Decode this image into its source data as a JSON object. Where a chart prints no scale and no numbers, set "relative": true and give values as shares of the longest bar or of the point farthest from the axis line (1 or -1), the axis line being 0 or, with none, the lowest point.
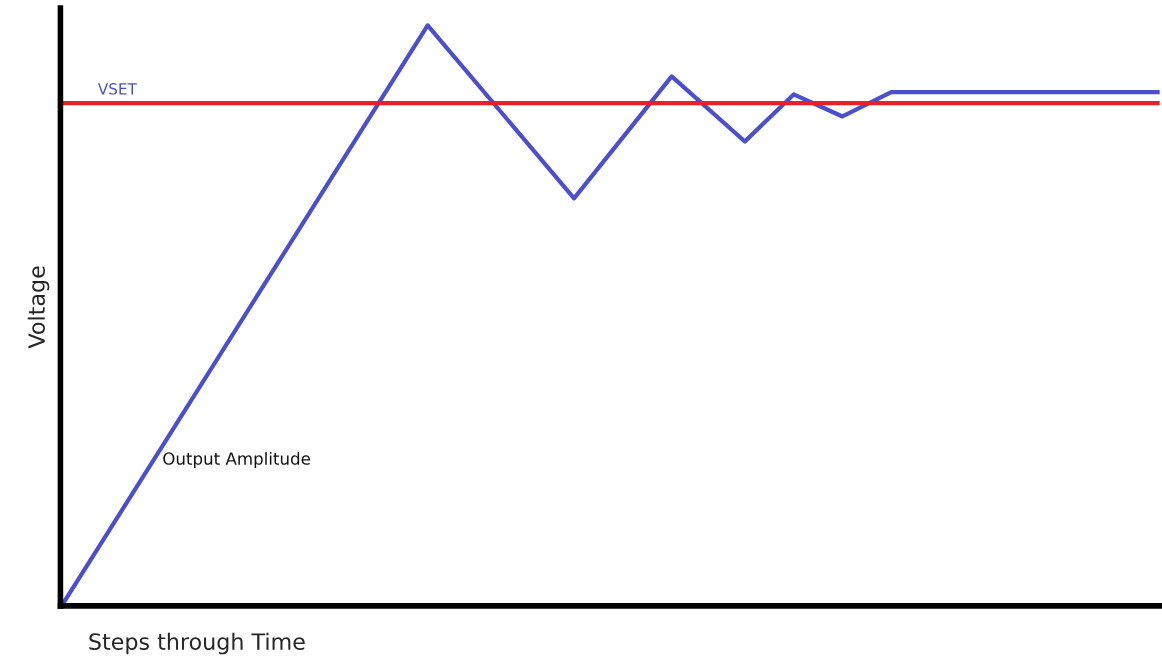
{
  "chart_data": {
    "type": "line",
    "relative": true,
    "xlabel": "Steps through Time",
    "ylabel": "Voltage",
    "marker": "none",
    "line_style": "solid",
    "categories": [
      null,
      null,
      null,
      null,
      null,
      null,
      null,
      null,
      null,
      null,
      null,
      null,
      null,
      null,
      null,
      null,
      null,
      null,
      null,
      null,
      null,
      null,
      null,
      null,
      null,
      null,
      null,
      null,
      null,
      null,
      null,
      null,
      null,
      null,
      null,
      null,
      null,
      null,
      null,
      null,
      null,
      null,
      null,
      null,
      null,
      null
    ],
    "series": [
      {
        "name": "Output Amplitude",
        "color": "#4a4fcf",
        "values": [
          0,
          null,
          null,
          null,
          null,
          null,
          null,
          null,
          null,
          null,
          null,
          null,
          null,
          null,
          null,
          1,
          null,
          null,
          null,
          null,
          null,
          0.702,
          null,
          null,
          null,
          0.912,
          null,
          null,
          0.8,
          null,
          0.881,
          null,
          0.843,
          null,
          0.885,
          null,
          null,
          null,
          null,
          null,
          null,
          null,
          null,
          null,
          null,
          0.885
        ]
      }
    ],
    "ref_lines": [
      {
        "axis": "y",
        "value": 0.866,
        "label": "VSET",
        "color": "#e8202a",
        "line_style": "solid"
      }
    ]
  }
}
